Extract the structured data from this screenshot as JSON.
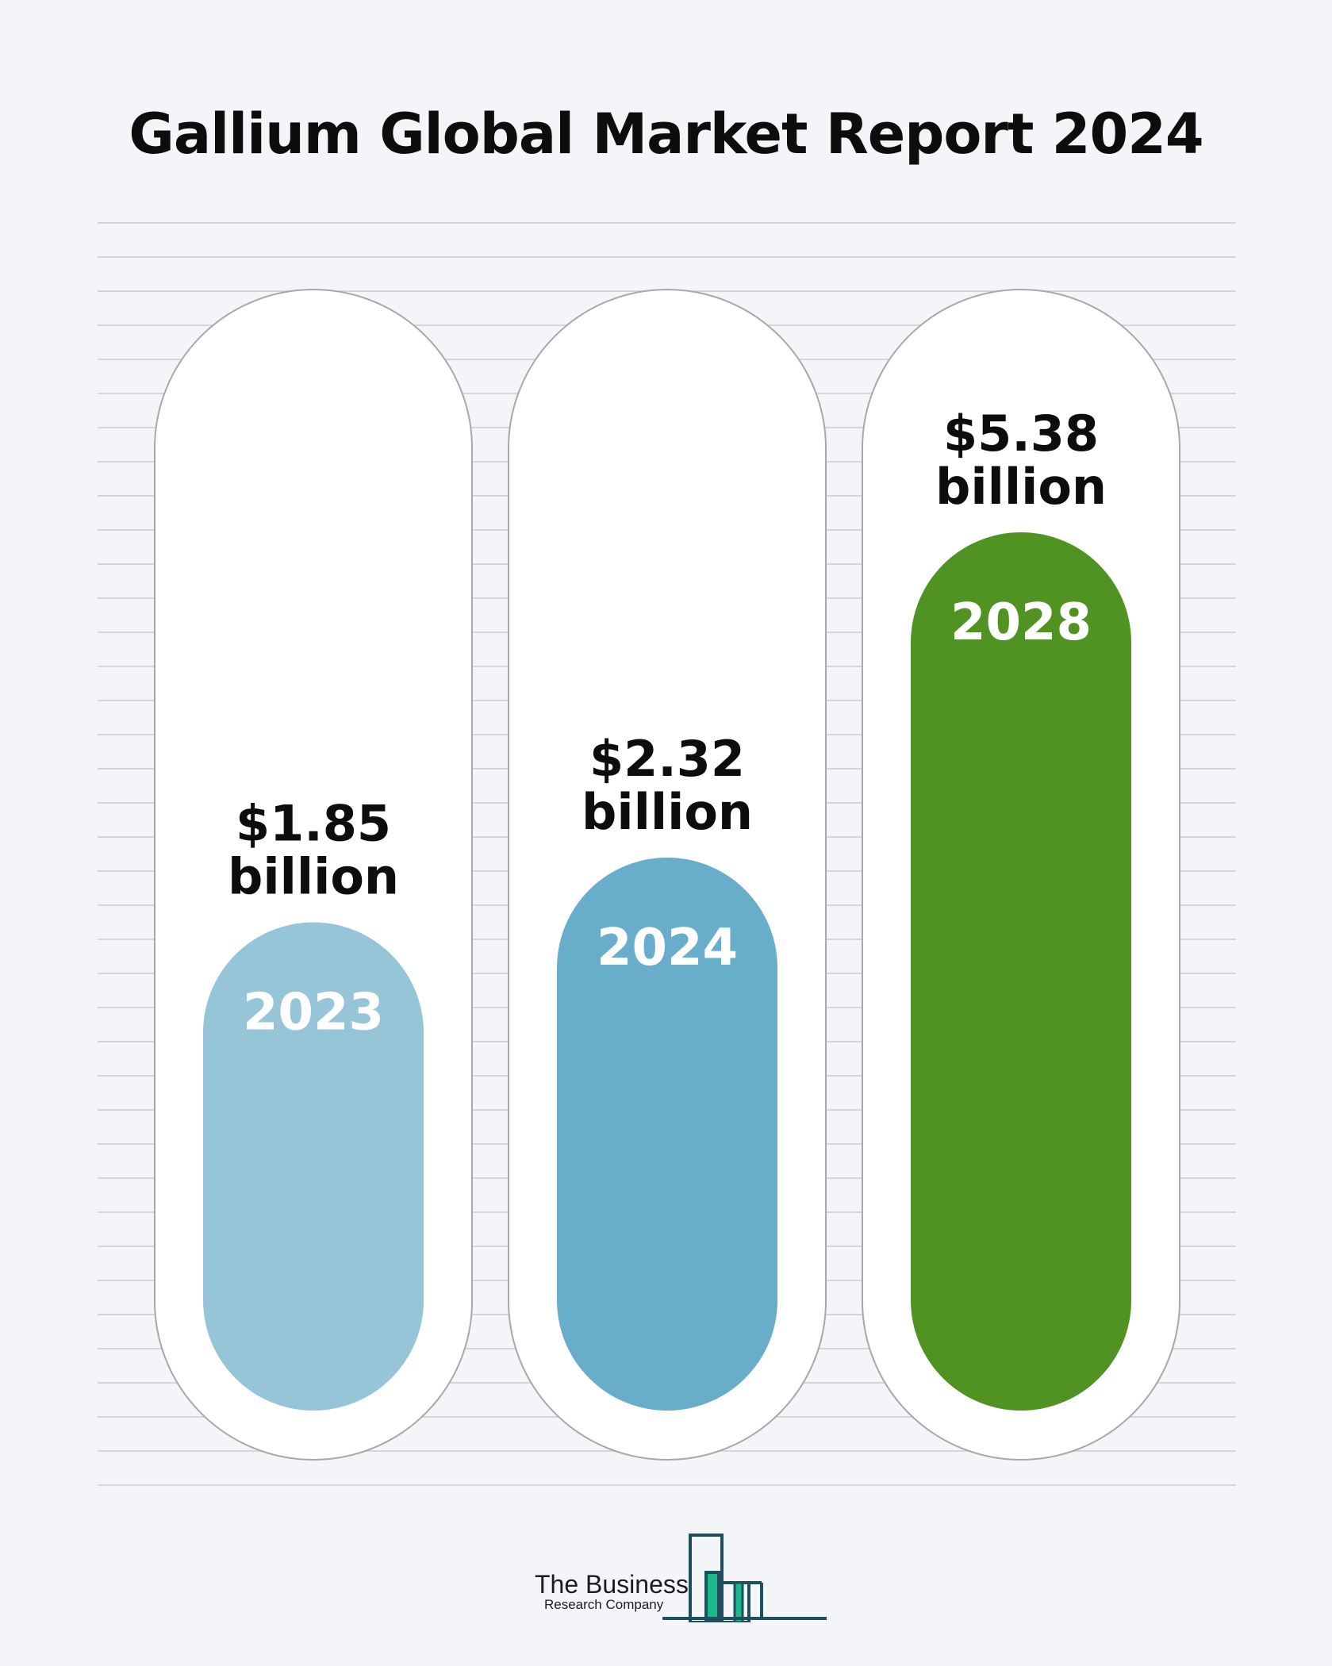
{
  "title": "Gallium Global Market Report 2024",
  "chart_data": {
    "type": "bar",
    "title": "Gallium Global Market Report 2024",
    "categories": [
      "2023",
      "2024",
      "2028"
    ],
    "values": [
      1.85,
      2.32,
      5.38
    ],
    "value_labels": [
      [
        "$1.85",
        "billion"
      ],
      [
        "$2.32",
        "billion"
      ],
      [
        "$5.38",
        "billion"
      ]
    ],
    "colors": [
      "#96c5d8",
      "#68adca",
      "#519322"
    ],
    "grid": true
  },
  "logo": {
    "line1": "The Business",
    "line2": "Research Company",
    "colors": {
      "outline": "#1f4e5c",
      "fill": "#1bb88e"
    }
  }
}
